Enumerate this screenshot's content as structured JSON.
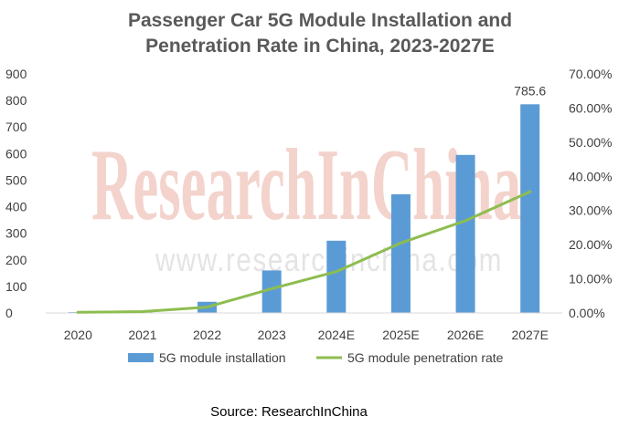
{
  "watermark": {
    "brand": "ResearchInChina",
    "url": "www.researchinchina.com"
  },
  "source": "Source: ResearchInChina",
  "colors": {
    "bar": "#5b9bd5",
    "line": "#8ebd4f",
    "text": "#404040",
    "title": "#595959"
  },
  "chart_data": {
    "type": "bar",
    "title_lines": [
      "Passenger Car 5G Module Installation and",
      "Penetration Rate in China, 2023-2027E"
    ],
    "categories": [
      "2020",
      "2021",
      "2022",
      "2023",
      "2024E",
      "2025E",
      "2026E",
      "2027E"
    ],
    "series": [
      {
        "name": "5G module installation",
        "type": "bar",
        "axis": "left",
        "values": [
          3,
          5,
          42,
          160,
          272,
          447,
          595,
          785.6
        ]
      },
      {
        "name": "5G module penetration rate",
        "type": "line",
        "axis": "right",
        "values": [
          0.002,
          0.004,
          0.017,
          0.071,
          0.121,
          0.205,
          0.27,
          0.355
        ]
      }
    ],
    "annotations": [
      {
        "category": "2027E",
        "series": "5G module installation",
        "label": "785.6"
      }
    ],
    "y_left": {
      "lim": [
        0,
        900
      ],
      "ticks": [
        "0",
        "100",
        "200",
        "300",
        "400",
        "500",
        "600",
        "700",
        "800",
        "900"
      ]
    },
    "y_right": {
      "lim": [
        0,
        0.7
      ],
      "ticks": [
        "0.00%",
        "10.00%",
        "20.00%",
        "30.00%",
        "40.00%",
        "50.00%",
        "60.00%",
        "70.00%"
      ]
    },
    "grid": false,
    "legend": "bottom"
  }
}
